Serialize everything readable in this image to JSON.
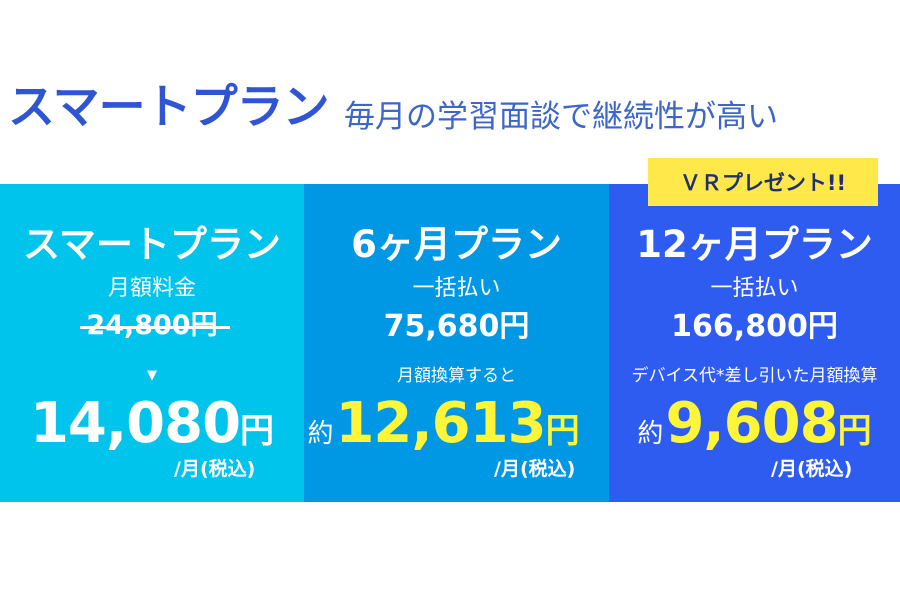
{
  "header": {
    "title": "スマートプラン",
    "subtitle": "毎月の学習面談で継続性が高い"
  },
  "badge": "ＶＲプレゼント!!",
  "plans": [
    {
      "name": "スマートプラン",
      "sub": "月額料金",
      "original_price": "24,800円",
      "arrow": "▼",
      "price_number": "14,080",
      "price_unit": "円",
      "per": "/月(税込)"
    },
    {
      "name": "6ヶ月プラン",
      "sub": "一括払い",
      "lump_price": "75,680円",
      "note": "月額換算すると",
      "price_prefix": "約",
      "price_number": "12,613",
      "price_unit": "円",
      "per": "/月(税込)"
    },
    {
      "name": "12ヶ月プラン",
      "sub": "一括払い",
      "lump_price": "166,800円",
      "note": "デバイス代*差し引いた月額換算",
      "price_prefix": "約",
      "price_number": "9,608",
      "price_unit": "円",
      "per": "/月(税込)"
    }
  ],
  "colors": {
    "title": "#2f55d4",
    "subtitle": "#3d66c8",
    "panel_1": "#00c4ec",
    "panel_2": "#0097e4",
    "panel_3": "#2e5cf0",
    "badge": "#ffe94a",
    "highlight": "#fff53a"
  }
}
